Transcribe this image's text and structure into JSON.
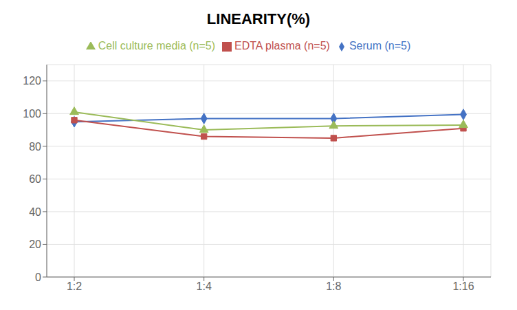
{
  "chart_data": {
    "type": "line",
    "title": "LINEARITY(%)",
    "categories": [
      "1:2",
      "1:4",
      "1:8",
      "1:16"
    ],
    "series": [
      {
        "name": "Serum (n=5)",
        "color": "#4472C4",
        "values": [
          95,
          97,
          97,
          99.5
        ],
        "marker": "diamond",
        "line_style": "solid"
      },
      {
        "name": "EDTA plasma (n=5)",
        "color": "#C0504D",
        "values": [
          96,
          86,
          85,
          91
        ],
        "marker": "square",
        "line_style": "solid"
      },
      {
        "name": "Cell culture media (n=5)",
        "color": "#9BBB59",
        "values": [
          101,
          90,
          92.5,
          93
        ],
        "marker": "triangle",
        "line_style": "solid"
      }
    ],
    "ylim": [
      0,
      130
    ],
    "yticks": [
      0,
      20,
      40,
      60,
      80,
      100,
      120
    ],
    "grid": true,
    "legend": "top"
  }
}
